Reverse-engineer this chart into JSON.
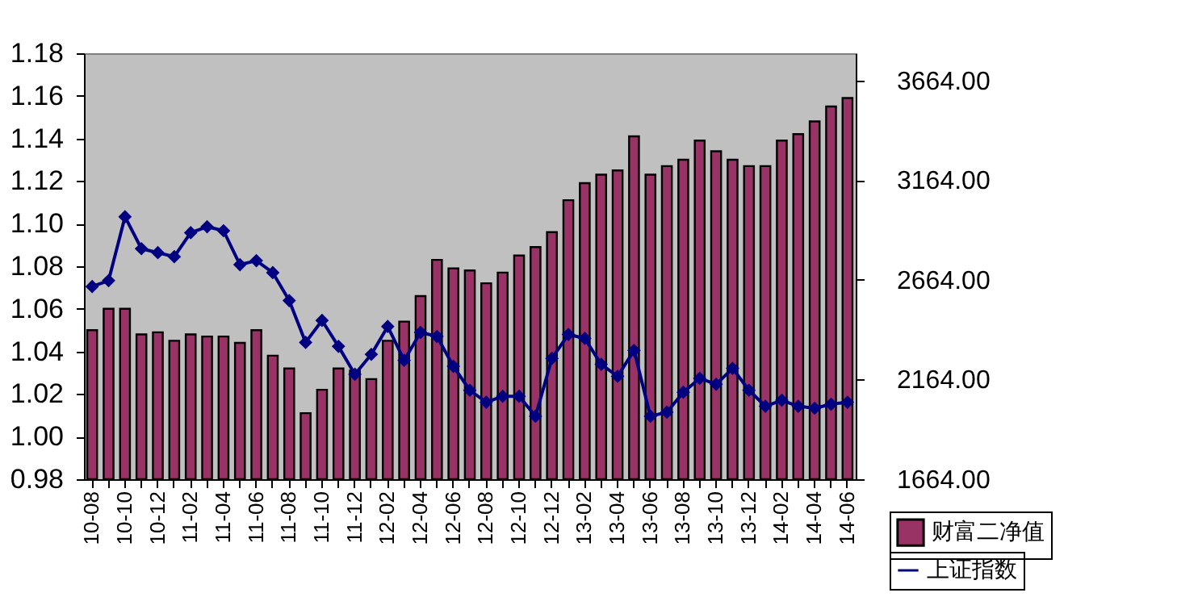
{
  "chart_data": {
    "type": "bar",
    "categories": [
      "10-08",
      null,
      "10-10",
      null,
      "10-12",
      null,
      "11-02",
      null,
      "11-04",
      null,
      "11-06",
      null,
      "11-08",
      null,
      "11-10",
      null,
      "11-12",
      null,
      "12-02",
      null,
      "12-04",
      null,
      "12-06",
      null,
      "12-08",
      null,
      "12-10",
      null,
      "12-12",
      null,
      "13-02",
      null,
      "13-04",
      null,
      "13-06",
      null,
      "13-08",
      null,
      "13-10",
      null,
      "13-12",
      null,
      "14-02",
      null,
      "14-04",
      null,
      "14-06"
    ],
    "series": [
      {
        "name": "财富二净值",
        "color": "#993366",
        "values": [
          1.05,
          1.06,
          1.06,
          1.048,
          1.049,
          1.045,
          1.048,
          1.047,
          1.047,
          1.044,
          1.05,
          1.038,
          1.032,
          1.011,
          1.022,
          1.032,
          1.031,
          1.027,
          1.045,
          1.054,
          1.066,
          1.083,
          1.079,
          1.078,
          1.072,
          1.077,
          1.085,
          1.089,
          1.096,
          1.111,
          1.119,
          1.123,
          1.125,
          1.141,
          1.123,
          1.127,
          1.13,
          1.139,
          1.134,
          1.13,
          1.127,
          1.127,
          1.139,
          1.142,
          1.148,
          1.155,
          1.159
        ]
      },
      {
        "name": "上证指数",
        "color": "#000080",
        "type": "line",
        "axis": "y2",
        "marker": "diamond",
        "values": [
          2630,
          2660,
          2980,
          2820,
          2800,
          2780,
          2900,
          2930,
          2910,
          2740,
          2760,
          2700,
          2560,
          2350,
          2460,
          2330,
          2190,
          2290,
          2430,
          2260,
          2400,
          2380,
          2230,
          2110,
          2050,
          2080,
          2080,
          1980,
          2270,
          2390,
          2370,
          2240,
          2180,
          2310,
          1980,
          2000,
          2100,
          2170,
          2140,
          2220,
          2110,
          2030,
          2060,
          2030,
          2020,
          2040,
          2050
        ]
      }
    ],
    "ylim": [
      0.98,
      1.18
    ],
    "yticks": [
      {
        "value": 0.98,
        "label": "0.98"
      },
      {
        "value": 1.0,
        "label": "1.00"
      },
      {
        "value": 1.02,
        "label": "1.02"
      },
      {
        "value": 1.04,
        "label": "1.04"
      },
      {
        "value": 1.06,
        "label": "1.06"
      },
      {
        "value": 1.08,
        "label": "1.08"
      },
      {
        "value": 1.1,
        "label": "1.10"
      },
      {
        "value": 1.12,
        "label": "1.12"
      },
      {
        "value": 1.14,
        "label": "1.14"
      },
      {
        "value": 1.16,
        "label": "1.16"
      },
      {
        "value": 1.18,
        "label": "1.18"
      }
    ],
    "y2lim": [
      1664,
      3800
    ],
    "y2ticks": [
      {
        "value": 1664,
        "label": "1664.00"
      },
      {
        "value": 2164,
        "label": "2164.00"
      },
      {
        "value": 2664,
        "label": "2664.00"
      },
      {
        "value": 3164,
        "label": "3164.00"
      },
      {
        "value": 3664,
        "label": "3664.00"
      }
    ],
    "grid": false,
    "legend": "bottom right"
  }
}
